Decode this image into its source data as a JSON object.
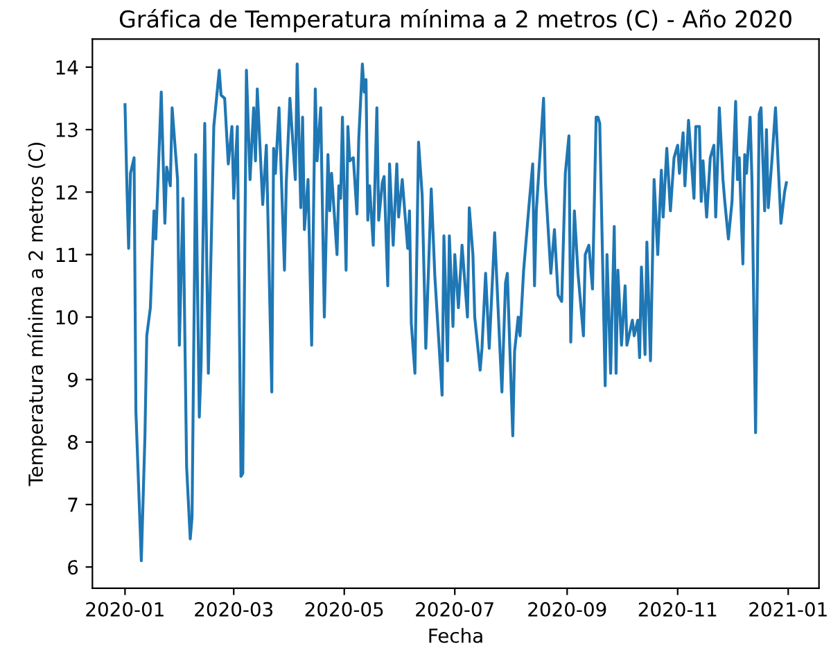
{
  "chart_data": {
    "type": "line",
    "title": "Gráfica de Temperatura mínima a 2 metros (C) - Año 2020",
    "xlabel": "Fecha",
    "ylabel": "Temperatura mínima a 2 metros (C)",
    "x": [
      "2020-01-01",
      "2020-01-02",
      "2020-01-03",
      "2020-01-04",
      "2020-01-06",
      "2020-01-07",
      "2020-01-10",
      "2020-01-12",
      "2020-01-13",
      "2020-01-15",
      "2020-01-17",
      "2020-01-18",
      "2020-01-21",
      "2020-01-23",
      "2020-01-24",
      "2020-01-26",
      "2020-01-27",
      "2020-01-30",
      "2020-01-31",
      "2020-02-02",
      "2020-02-04",
      "2020-02-06",
      "2020-02-07",
      "2020-02-09",
      "2020-02-11",
      "2020-02-12",
      "2020-02-14",
      "2020-02-16",
      "2020-02-19",
      "2020-02-22",
      "2020-02-23",
      "2020-02-25",
      "2020-02-27",
      "2020-02-29",
      "2020-03-01",
      "2020-03-03",
      "2020-03-05",
      "2020-03-06",
      "2020-03-08",
      "2020-03-10",
      "2020-03-12",
      "2020-03-13",
      "2020-03-14",
      "2020-03-17",
      "2020-03-19",
      "2020-03-22",
      "2020-03-23",
      "2020-03-24",
      "2020-03-26",
      "2020-03-29",
      "2020-03-30",
      "2020-04-01",
      "2020-04-04",
      "2020-04-05",
      "2020-04-07",
      "2020-04-08",
      "2020-04-09",
      "2020-04-11",
      "2020-04-13",
      "2020-04-15",
      "2020-04-16",
      "2020-04-18",
      "2020-04-20",
      "2020-04-22",
      "2020-04-23",
      "2020-04-24",
      "2020-04-27",
      "2020-04-28",
      "2020-04-29",
      "2020-04-30",
      "2020-05-02",
      "2020-05-03",
      "2020-05-04",
      "2020-05-06",
      "2020-05-08",
      "2020-05-09",
      "2020-05-11",
      "2020-05-12",
      "2020-05-13",
      "2020-05-14",
      "2020-05-15",
      "2020-05-17",
      "2020-05-19",
      "2020-05-20",
      "2020-05-22",
      "2020-05-23",
      "2020-05-25",
      "2020-05-26",
      "2020-05-28",
      "2020-05-30",
      "2020-05-31",
      "2020-06-02",
      "2020-06-05",
      "2020-06-06",
      "2020-06-07",
      "2020-06-09",
      "2020-06-11",
      "2020-06-13",
      "2020-06-15",
      "2020-06-18",
      "2020-06-20",
      "2020-06-24",
      "2020-06-25",
      "2020-06-27",
      "2020-06-28",
      "2020-06-30",
      "2020-07-01",
      "2020-07-03",
      "2020-07-05",
      "2020-07-08",
      "2020-07-09",
      "2020-07-11",
      "2020-07-12",
      "2020-07-15",
      "2020-07-16",
      "2020-07-18",
      "2020-07-20",
      "2020-07-23",
      "2020-07-27",
      "2020-07-29",
      "2020-07-30",
      "2020-08-02",
      "2020-08-03",
      "2020-08-05",
      "2020-08-06",
      "2020-08-08",
      "2020-08-11",
      "2020-08-13",
      "2020-08-14",
      "2020-08-15",
      "2020-08-19",
      "2020-08-20",
      "2020-08-23",
      "2020-08-25",
      "2020-08-27",
      "2020-08-29",
      "2020-08-31",
      "2020-09-02",
      "2020-09-03",
      "2020-09-05",
      "2020-09-07",
      "2020-09-10",
      "2020-09-11",
      "2020-09-13",
      "2020-09-15",
      "2020-09-17",
      "2020-09-18",
      "2020-09-19",
      "2020-09-22",
      "2020-09-23",
      "2020-09-25",
      "2020-09-27",
      "2020-09-28",
      "2020-09-29",
      "2020-10-01",
      "2020-10-03",
      "2020-10-04",
      "2020-10-07",
      "2020-10-08",
      "2020-10-10",
      "2020-10-11",
      "2020-10-12",
      "2020-10-14",
      "2020-10-15",
      "2020-10-17",
      "2020-10-19",
      "2020-10-21",
      "2020-10-23",
      "2020-10-24",
      "2020-10-26",
      "2020-10-28",
      "2020-10-30",
      "2020-11-01",
      "2020-11-02",
      "2020-11-04",
      "2020-11-05",
      "2020-11-06",
      "2020-11-07",
      "2020-11-10",
      "2020-11-11",
      "2020-11-13",
      "2020-11-14",
      "2020-11-15",
      "2020-11-17",
      "2020-11-19",
      "2020-11-21",
      "2020-11-22",
      "2020-11-23",
      "2020-11-24",
      "2020-11-26",
      "2020-11-27",
      "2020-11-29",
      "2020-12-01",
      "2020-12-03",
      "2020-12-04",
      "2020-12-05",
      "2020-12-07",
      "2020-12-08",
      "2020-12-09",
      "2020-12-11",
      "2020-12-12",
      "2020-12-14",
      "2020-12-16",
      "2020-12-17",
      "2020-12-19",
      "2020-12-20",
      "2020-12-21",
      "2020-12-23",
      "2020-12-25",
      "2020-12-28",
      "2020-12-30",
      "2020-12-31"
    ],
    "series": [
      {
        "color": "#1f77b4",
        "values": [
          13.4,
          12.15,
          11.1,
          12.3,
          12.55,
          8.5,
          6.1,
          8.1,
          9.7,
          10.15,
          11.7,
          11.25,
          13.6,
          11.5,
          12.4,
          12.1,
          13.35,
          12.2,
          9.55,
          11.9,
          7.6,
          6.45,
          6.8,
          12.6,
          8.4,
          9.25,
          13.1,
          9.1,
          13.05,
          13.95,
          13.55,
          13.5,
          12.45,
          13.05,
          11.9,
          13.05,
          7.45,
          7.5,
          13.95,
          12.2,
          13.35,
          12.5,
          13.65,
          11.8,
          12.75,
          8.8,
          12.7,
          12.3,
          13.35,
          10.75,
          12.15,
          13.5,
          12.2,
          14.05,
          11.75,
          13.2,
          11.4,
          12.2,
          9.55,
          13.65,
          12.5,
          13.35,
          10.0,
          12.6,
          11.7,
          12.3,
          11.0,
          12.1,
          11.9,
          13.2,
          10.75,
          13.05,
          12.5,
          12.55,
          11.65,
          12.85,
          14.05,
          13.6,
          13.8,
          11.55,
          12.1,
          11.15,
          13.35,
          11.55,
          12.15,
          12.25,
          10.5,
          12.45,
          11.15,
          12.45,
          11.6,
          12.2,
          11.1,
          11.7,
          9.9,
          9.1,
          12.8,
          11.95,
          9.5,
          12.05,
          10.65,
          8.75,
          11.3,
          9.3,
          11.3,
          9.85,
          11.0,
          10.15,
          11.15,
          10.0,
          11.75,
          11.0,
          10.0,
          9.15,
          9.5,
          10.7,
          9.5,
          11.35,
          8.8,
          10.55,
          10.7,
          8.1,
          9.45,
          10.0,
          9.7,
          10.75,
          11.8,
          12.45,
          10.5,
          11.7,
          13.5,
          12.15,
          10.7,
          11.4,
          10.35,
          10.25,
          12.3,
          12.9,
          9.6,
          11.7,
          10.7,
          9.7,
          11.0,
          11.15,
          10.45,
          13.2,
          13.2,
          13.1,
          8.9,
          11.0,
          9.1,
          11.45,
          9.1,
          10.75,
          9.55,
          10.5,
          9.55,
          9.95,
          9.7,
          9.95,
          9.35,
          10.8,
          9.4,
          11.2,
          9.3,
          12.2,
          11.0,
          12.35,
          11.6,
          12.7,
          11.7,
          12.55,
          12.75,
          12.3,
          12.95,
          12.1,
          12.6,
          13.15,
          11.9,
          13.05,
          13.05,
          11.85,
          12.5,
          11.6,
          12.55,
          12.75,
          11.6,
          12.45,
          13.35,
          12.2,
          11.85,
          11.25,
          11.85,
          13.45,
          12.2,
          12.55,
          10.85,
          12.6,
          12.3,
          13.2,
          12.2,
          8.15,
          13.25,
          13.35,
          11.7,
          13.0,
          11.75,
          12.5,
          13.35,
          11.5,
          12.0,
          12.15
        ]
      }
    ],
    "xlim": [
      "2019-12-14",
      "2021-01-18"
    ],
    "xticks": [
      {
        "value": "2020-01-01",
        "label": "2020-01"
      },
      {
        "value": "2020-03-01",
        "label": "2020-03"
      },
      {
        "value": "2020-05-01",
        "label": "2020-05"
      },
      {
        "value": "2020-07-01",
        "label": "2020-07"
      },
      {
        "value": "2020-09-01",
        "label": "2020-09"
      },
      {
        "value": "2020-11-01",
        "label": "2020-11"
      },
      {
        "value": "2021-01-01",
        "label": "2021-01"
      }
    ],
    "ylim": [
      5.66,
      14.45
    ],
    "yticks": [
      6,
      7,
      8,
      9,
      10,
      11,
      12,
      13,
      14
    ]
  }
}
